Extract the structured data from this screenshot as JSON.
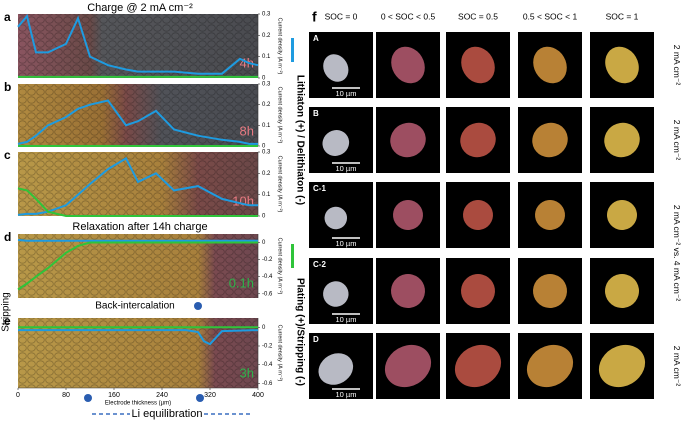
{
  "title": "Charge @ 2 mA cm⁻²",
  "relaxation_title": "Relaxation after 14h charge",
  "chart_data": [
    {
      "type": "line",
      "panel": "a",
      "time": "4h",
      "ylabel": "Current density (A m⁻²)",
      "x": [
        0,
        15,
        30,
        50,
        80,
        100,
        120,
        150,
        180,
        200,
        230,
        260,
        300,
        340,
        370,
        385,
        400
      ],
      "xlim": [
        0,
        400
      ],
      "ylim": [
        0,
        0.3
      ],
      "yticks": [
        0,
        0.1,
        0.2,
        0.3
      ],
      "series": [
        {
          "color": "#1e9be0",
          "values": [
            0.24,
            0.29,
            0.12,
            0.12,
            0.16,
            0.28,
            0.1,
            0.06,
            0.04,
            0.03,
            0.03,
            0.03,
            0.02,
            0.02,
            0.09,
            0.07,
            0.06
          ]
        },
        {
          "color": "#2fc43a",
          "values": [
            0.005,
            0.005,
            0.005,
            0.005,
            0.005,
            0.005,
            0.005,
            0.005,
            0.005,
            0.005,
            0.005,
            0.005,
            0.005,
            0.005,
            0.005,
            0.005,
            0.005
          ]
        }
      ]
    },
    {
      "type": "line",
      "panel": "b",
      "time": "8h",
      "ylabel": "Current density (A m⁻²)",
      "x": [
        0,
        15,
        30,
        50,
        80,
        100,
        120,
        150,
        180,
        200,
        230,
        260,
        300,
        340,
        370,
        385,
        400
      ],
      "xlim": [
        0,
        400
      ],
      "ylim": [
        0,
        0.3
      ],
      "yticks": [
        0,
        0.1,
        0.2,
        0.3
      ],
      "series": [
        {
          "color": "#1e9be0",
          "values": [
            0.01,
            0.02,
            0.05,
            0.1,
            0.14,
            0.18,
            0.2,
            0.22,
            0.1,
            0.12,
            0.17,
            0.08,
            0.05,
            0.03,
            0.02,
            0.01,
            0.01
          ]
        },
        {
          "color": "#2fc43a",
          "values": [
            0,
            0,
            0,
            0,
            0,
            0,
            0,
            0,
            0,
            0,
            0,
            0,
            0,
            0,
            0,
            0,
            0
          ]
        }
      ]
    },
    {
      "type": "line",
      "panel": "c",
      "time": "10h",
      "ylabel": "Current density (A m⁻²)",
      "x": [
        0,
        15,
        30,
        50,
        80,
        100,
        120,
        150,
        180,
        200,
        230,
        260,
        300,
        340,
        370,
        385,
        400
      ],
      "xlim": [
        0,
        400
      ],
      "ylim": [
        0,
        0.3
      ],
      "yticks": [
        0,
        0.1,
        0.2,
        0.3
      ],
      "series": [
        {
          "color": "#1e9be0",
          "values": [
            0.005,
            0.01,
            0.01,
            0.02,
            0.05,
            0.1,
            0.15,
            0.22,
            0.27,
            0.16,
            0.2,
            0.12,
            0.14,
            0.08,
            0.06,
            0.05,
            0.05
          ]
        },
        {
          "color": "#2fc43a",
          "values": [
            0.13,
            0.12,
            0.08,
            0.02,
            0,
            0,
            0,
            0,
            0,
            0,
            0,
            0,
            0,
            0,
            0,
            0,
            0
          ]
        }
      ]
    },
    {
      "type": "line",
      "panel": "d",
      "time": "0.1h",
      "ylabel": "Current density (A m⁻²)",
      "x": [
        0,
        15,
        30,
        50,
        80,
        100,
        120,
        150,
        180,
        200,
        230,
        260,
        300,
        340,
        370,
        385,
        400
      ],
      "xlim": [
        0,
        400
      ],
      "ylim": [
        -0.65,
        0.1
      ],
      "yticks": [
        0,
        -0.2,
        -0.4,
        -0.6
      ],
      "series": [
        {
          "color": "#1e9be0",
          "values": [
            0.03,
            0.02,
            0.02,
            0.02,
            0.02,
            0.02,
            0.02,
            0.02,
            0.02,
            0.02,
            0.02,
            0.02,
            0.02,
            0.02,
            0.02,
            0.02,
            0.02
          ]
        },
        {
          "color": "#2fc43a",
          "values": [
            -0.55,
            -0.48,
            -0.4,
            -0.3,
            -0.12,
            -0.04,
            0,
            0,
            0,
            0,
            0,
            0,
            0,
            0,
            0,
            0,
            0
          ]
        }
      ]
    },
    {
      "type": "line",
      "panel": "e",
      "time": "3h",
      "ylabel": "Current density (A m⁻²)",
      "xlabel": "Electrode thickness (µm)",
      "x": [
        0,
        100,
        200,
        280,
        300,
        310,
        320,
        340,
        400
      ],
      "xlim": [
        0,
        400
      ],
      "xticks": [
        0,
        80,
        160,
        240,
        320,
        400
      ],
      "ylim": [
        -0.65,
        0.1
      ],
      "yticks": [
        0,
        -0.2,
        -0.4,
        -0.6
      ],
      "series": [
        {
          "color": "#1e9be0",
          "values": [
            -0.03,
            -0.03,
            -0.03,
            -0.03,
            -0.05,
            -0.15,
            -0.18,
            -0.04,
            -0.03
          ]
        },
        {
          "color": "#2fc43a",
          "values": [
            0,
            0,
            0,
            0,
            0,
            0,
            0,
            0,
            0
          ]
        }
      ]
    }
  ],
  "annotations": {
    "stripping": "Stripping",
    "back_intercalation": "Back-intercalation",
    "li_equilibration": "Li equilibration"
  },
  "panel_f": {
    "label": "f",
    "columns": [
      "SOC = 0",
      "0 < SOC < 0.5",
      "SOC = 0.5",
      "0.5 < SOC < 1",
      "SOC = 1"
    ],
    "rows": [
      "A",
      "B",
      "C-1",
      "C-2",
      "D"
    ],
    "scale_bar": "10 µm",
    "right_labels": [
      "2 mA cm⁻²",
      "2 mA cm⁻²",
      "2 mA cm⁻² vs. 4 mA cm⁻²",
      "2 mA cm⁻²"
    ],
    "side_labels": [
      "Lithiaton (+) / Delithiaton (-)",
      "Plating (+)/Stripping (-)"
    ]
  }
}
